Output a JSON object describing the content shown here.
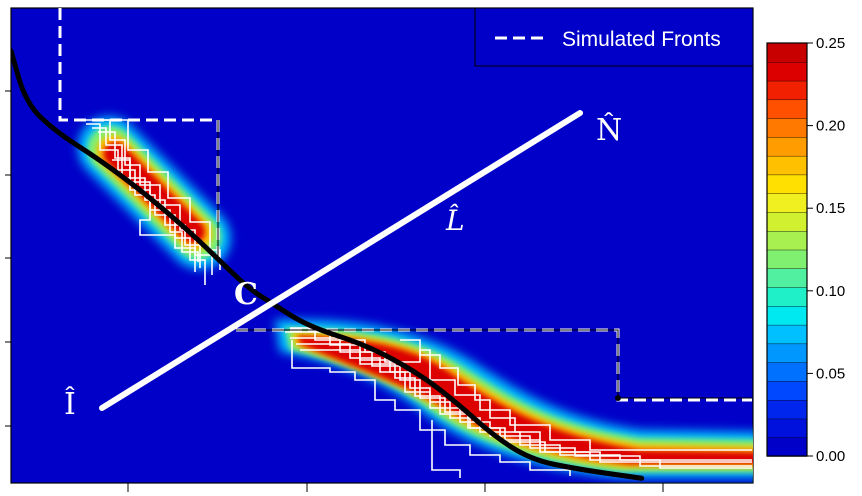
{
  "chart_data": {
    "type": "heatmap",
    "legend": {
      "label": "Simulated Fronts",
      "placement": "top-right"
    },
    "annotations": {
      "I": "Î",
      "N": "N̂",
      "L": "L̂",
      "C": "C"
    },
    "colorbar": {
      "ticks": [
        "0.00",
        "0.05",
        "0.10",
        "0.15",
        "0.20",
        "0.25"
      ],
      "range": [
        0,
        0.25
      ],
      "colors": [
        "#0000c8",
        "#0010dd",
        "#0026ee",
        "#0048ff",
        "#0070ff",
        "#0098ff",
        "#00c0ff",
        "#00e8f0",
        "#20f0c8",
        "#50f0a0",
        "#80f070",
        "#a8f050",
        "#d0f030",
        "#f0f020",
        "#ffe000",
        "#ffc000",
        "#ff9c00",
        "#ff7800",
        "#ff5000",
        "#f02000",
        "#dc0000",
        "#c80000"
      ]
    },
    "median_front": [
      [
        0.0,
        0.91
      ],
      [
        0.02,
        0.8
      ],
      [
        0.06,
        0.74
      ],
      [
        0.12,
        0.68
      ],
      [
        0.18,
        0.61
      ],
      [
        0.24,
        0.53
      ],
      [
        0.28,
        0.47
      ],
      [
        0.32,
        0.41
      ],
      [
        0.35,
        0.38
      ],
      [
        0.4,
        0.33
      ],
      [
        0.48,
        0.29
      ],
      [
        0.55,
        0.23
      ],
      [
        0.6,
        0.17
      ],
      [
        0.65,
        0.1
      ],
      [
        0.7,
        0.05
      ],
      [
        0.76,
        0.03
      ],
      [
        0.85,
        0.01
      ]
    ],
    "density_regions": [
      {
        "x0": 0.09,
        "y0": 0.82,
        "x1": 0.28,
        "y1": 0.55,
        "level": 0.23
      },
      {
        "x0": 0.37,
        "y0": 0.36,
        "x1": 1.0,
        "y1": 0.07,
        "level": 0.25
      }
    ]
  }
}
